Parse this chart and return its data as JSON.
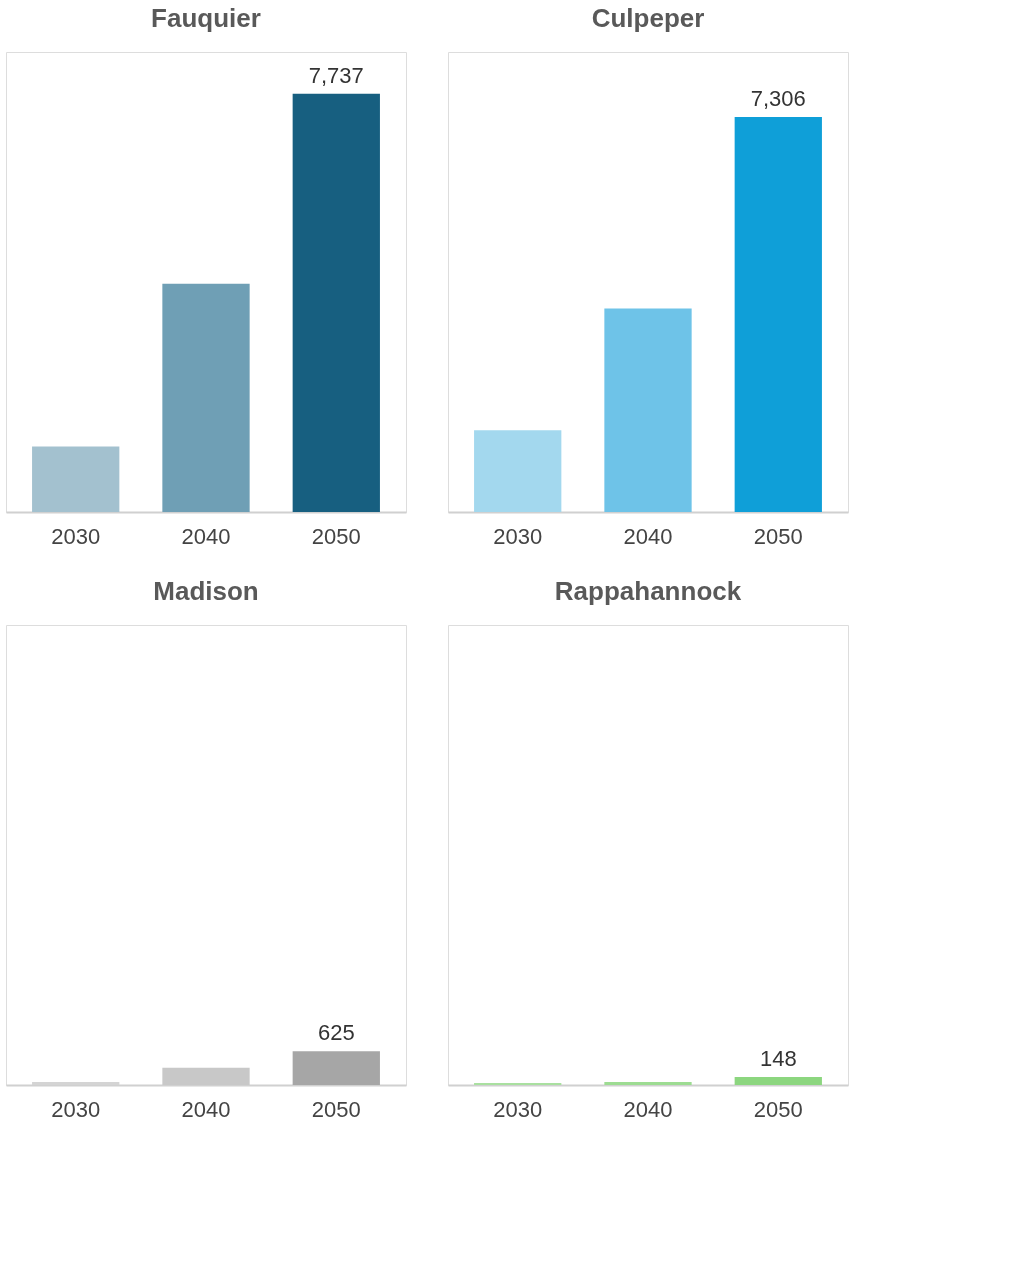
{
  "chart_data": [
    {
      "type": "bar",
      "title": "Fauquier",
      "categories": [
        "2030",
        "2040",
        "2050"
      ],
      "values": [
        1214,
        4222,
        7737
      ],
      "value_labels": [
        null,
        null,
        "7,737"
      ],
      "colors": [
        "#a3c1cf",
        "#6f9fb5",
        "#175f80"
      ]
    },
    {
      "type": "bar",
      "title": "Culpeper",
      "categories": [
        "2030",
        "2040",
        "2050"
      ],
      "values": [
        1513,
        3764,
        7306
      ],
      "value_labels": [
        null,
        null,
        "7,306"
      ],
      "colors": [
        "#a3d8ee",
        "#6ec3e8",
        "#0f9fd8"
      ]
    },
    {
      "type": "bar",
      "title": "Madison",
      "categories": [
        "2030",
        "2040",
        "2050"
      ],
      "values": [
        54,
        321,
        625
      ],
      "value_labels": [
        null,
        null,
        "625"
      ],
      "colors": [
        "#d4d4d4",
        "#c8c8c8",
        "#a6a6a6"
      ]
    },
    {
      "type": "bar",
      "title": "Rappahannock",
      "categories": [
        "2030",
        "2040",
        "2050"
      ],
      "values": [
        37,
        55,
        148
      ],
      "value_labels": [
        null,
        null,
        "148"
      ],
      "colors": [
        "#a9e0a0",
        "#9ddc92",
        "#8cd67f"
      ]
    }
  ]
}
